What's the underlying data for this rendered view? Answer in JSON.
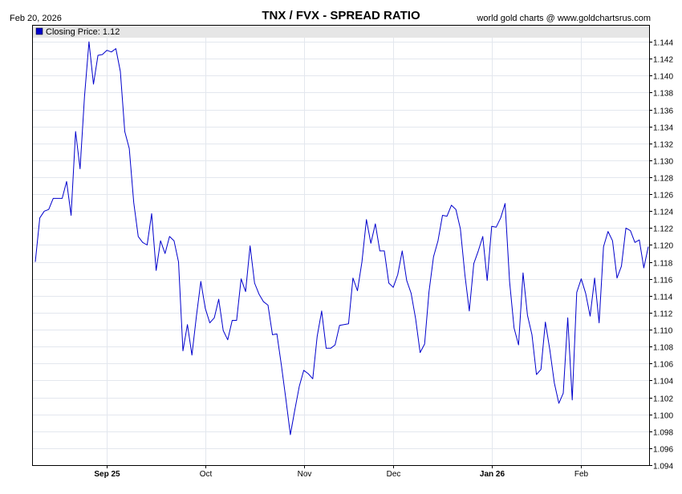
{
  "header": {
    "date": "Feb 20, 2026",
    "title": "TNX / FVX - SPREAD RATIO",
    "source": "world gold charts @ www.goldchartsrus.com"
  },
  "legend": {
    "label": "Closing Price: 1.12",
    "color": "#0000cc"
  },
  "chart_data": {
    "type": "line",
    "title": "TNX / FVX - SPREAD RATIO",
    "xlabel": "",
    "ylabel": "",
    "ylim": [
      1.094,
      1.146
    ],
    "y_ticks": [
      1.094,
      1.096,
      1.098,
      1.1,
      1.102,
      1.104,
      1.106,
      1.108,
      1.11,
      1.112,
      1.114,
      1.116,
      1.118,
      1.12,
      1.122,
      1.124,
      1.126,
      1.128,
      1.13,
      1.132,
      1.134,
      1.136,
      1.138,
      1.14,
      1.142,
      1.144
    ],
    "x_ticks": [
      {
        "label": "Sep 25",
        "index": 16,
        "bold": true
      },
      {
        "label": "Oct",
        "index": 38,
        "bold": false
      },
      {
        "label": "Nov",
        "index": 60,
        "bold": false
      },
      {
        "label": "Dec",
        "index": 80,
        "bold": false
      },
      {
        "label": "Jan 26",
        "index": 102,
        "bold": true
      },
      {
        "label": "Feb",
        "index": 122,
        "bold": false
      }
    ],
    "grid": true,
    "legend_position": "top-left",
    "series": [
      {
        "name": "Closing Price",
        "color": "#0000cc",
        "values": [
          1.118,
          1.1232,
          1.124,
          1.1242,
          1.1255,
          1.1255,
          1.1255,
          1.1275,
          1.1235,
          1.1334,
          1.129,
          1.1375,
          1.144,
          1.139,
          1.1424,
          1.1425,
          1.143,
          1.1428,
          1.1432,
          1.1405,
          1.1334,
          1.1314,
          1.125,
          1.121,
          1.1203,
          1.12,
          1.1237,
          1.117,
          1.1205,
          1.119,
          1.121,
          1.1205,
          1.118,
          1.1075,
          1.1106,
          1.107,
          1.1116,
          1.1157,
          1.1125,
          1.1108,
          1.1114,
          1.1136,
          1.1099,
          1.1088,
          1.1111,
          1.1111,
          1.116,
          1.1145,
          1.1199,
          1.1155,
          1.1142,
          1.1133,
          1.1129,
          1.1094,
          1.1095,
          1.1058,
          1.1018,
          1.0976,
          1.1005,
          1.1033,
          1.1052,
          1.1048,
          1.1042,
          1.1092,
          1.1122,
          1.1078,
          1.1078,
          1.1082,
          1.1105,
          1.1106,
          1.1107,
          1.1161,
          1.1146,
          1.118,
          1.123,
          1.1202,
          1.1225,
          1.1193,
          1.1193,
          1.1155,
          1.115,
          1.1165,
          1.1193,
          1.1158,
          1.1143,
          1.1113,
          1.1073,
          1.1083,
          1.1145,
          1.1186,
          1.1205,
          1.1235,
          1.1234,
          1.1247,
          1.1242,
          1.1219,
          1.1165,
          1.1122,
          1.1178,
          1.1193,
          1.121,
          1.1158,
          1.1222,
          1.1221,
          1.1232,
          1.1249,
          1.1157,
          1.1102,
          1.1082,
          1.1167,
          1.1117,
          1.1094,
          1.1047,
          1.1053,
          1.1109,
          1.1076,
          1.1037,
          1.1013,
          1.1025,
          1.1114,
          1.1017,
          1.1144,
          1.116,
          1.1143,
          1.1116,
          1.1161,
          1.1108,
          1.1198,
          1.1216,
          1.1205,
          1.1161,
          1.1175,
          1.122,
          1.1217,
          1.1203,
          1.1206,
          1.1173,
          1.1198
        ]
      }
    ]
  }
}
